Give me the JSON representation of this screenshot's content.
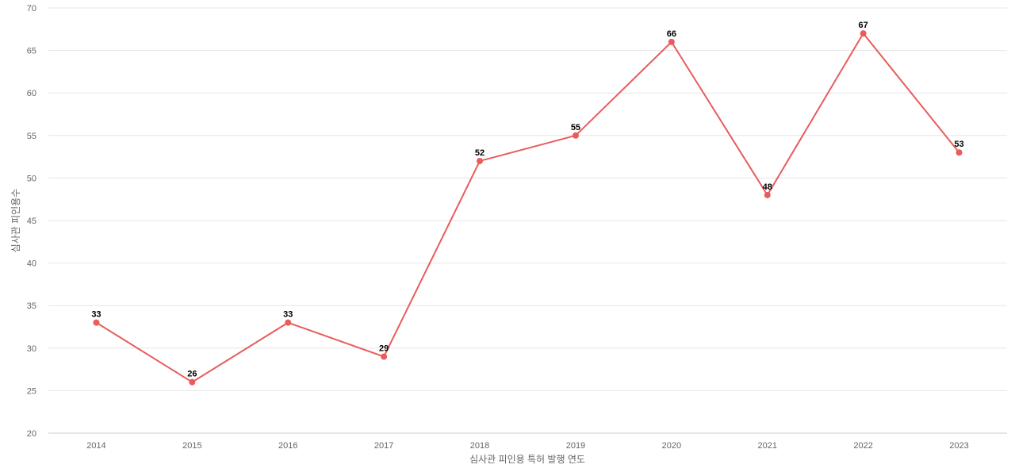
{
  "chart_data": {
    "type": "line",
    "title": "",
    "xlabel": "심사관 피인용 특허 발행 연도",
    "ylabel": "심사관 피인용수",
    "categories": [
      "2014",
      "2015",
      "2016",
      "2017",
      "2018",
      "2019",
      "2020",
      "2021",
      "2022",
      "2023"
    ],
    "series": [
      {
        "values": [
          33,
          26,
          33,
          29,
          52,
          55,
          66,
          48,
          67,
          53
        ],
        "color": "#e85c5c"
      }
    ],
    "ylim": [
      20,
      70
    ],
    "yticks": [
      20,
      25,
      30,
      35,
      40,
      45,
      50,
      55,
      60,
      65,
      70
    ],
    "grid": true,
    "legend": "none",
    "data_labels": true
  }
}
